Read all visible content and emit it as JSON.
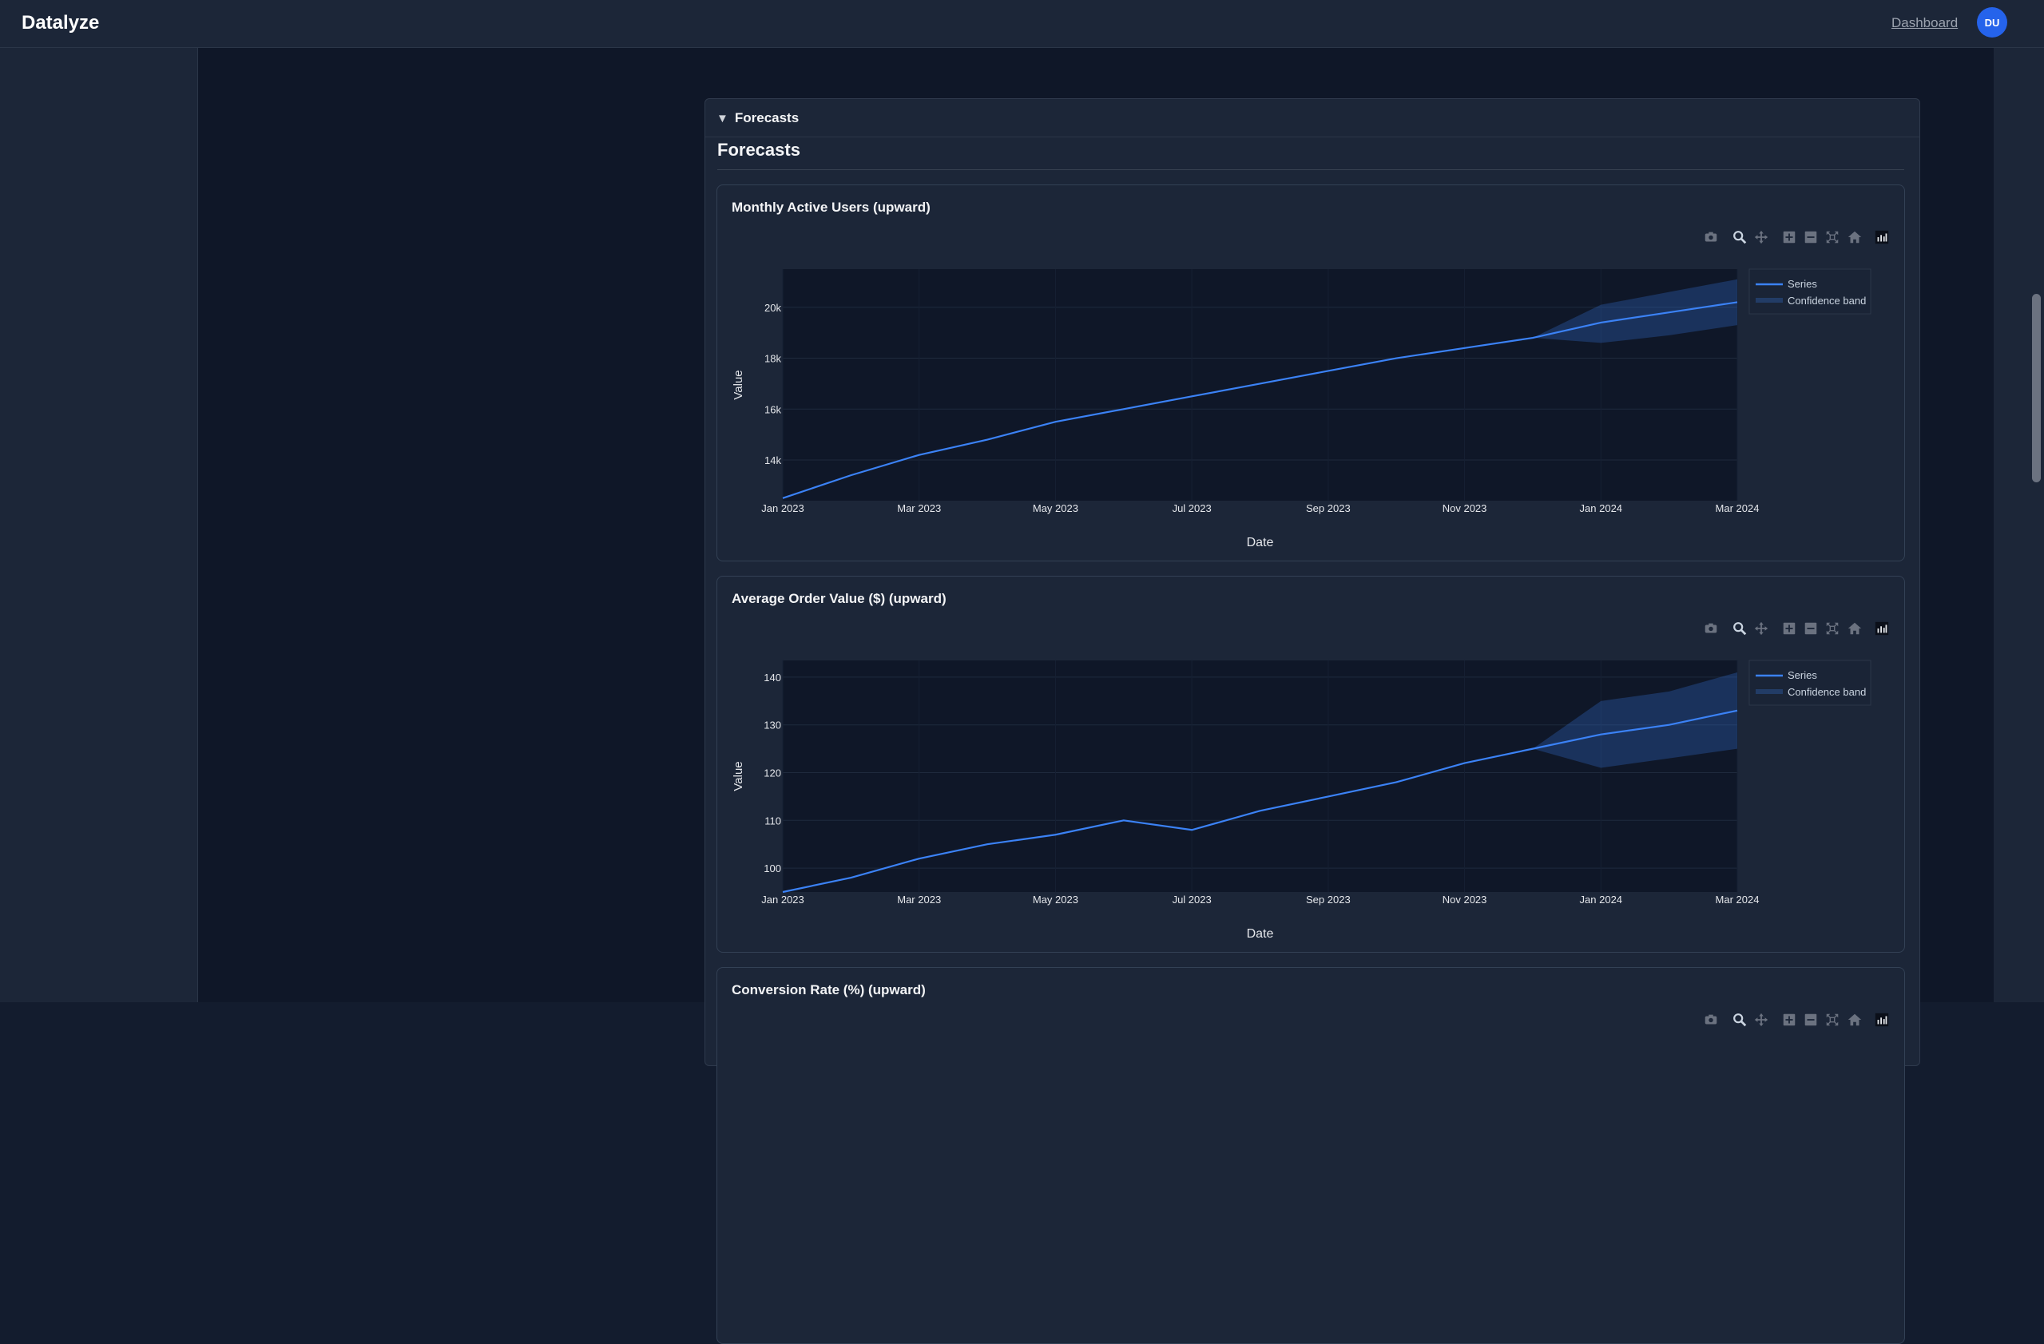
{
  "app": {
    "brand": "Datalyze",
    "nav_dashboard": "Dashboard",
    "user_initials": "DU"
  },
  "colors": {
    "accent": "#2563eb",
    "series": "#3b82f6",
    "band": "rgba(59,130,246,0.25)"
  },
  "section": {
    "toggle_label": "Forecasts",
    "title": "Forecasts"
  },
  "modebar": {
    "icons": [
      "camera-icon",
      "zoom-icon",
      "pan-icon",
      "zoom-in-icon",
      "zoom-out-icon",
      "autoscale-icon",
      "reset-axes-icon",
      "plotly-logo-icon"
    ]
  },
  "cards": [
    {
      "title": "Monthly Active Users (upward)",
      "chart_data": {
        "type": "line",
        "x": [
          "2023-01",
          "2023-02",
          "2023-03",
          "2023-04",
          "2023-05",
          "2023-06",
          "2023-07",
          "2023-08",
          "2023-09",
          "2023-10",
          "2023-11",
          "2023-12",
          "2024-01",
          "2024-02",
          "2024-03"
        ],
        "x_tick_labels": [
          "Jan 2023",
          "Mar 2023",
          "May 2023",
          "Jul 2023",
          "Sep 2023",
          "Nov 2023",
          "Jan 2024",
          "Mar 2024"
        ],
        "y_tick_labels": [
          "14k",
          "16k",
          "18k",
          "20k"
        ],
        "y_ticks": [
          14000,
          16000,
          18000,
          20000
        ],
        "ylim": [
          12400,
          21500
        ],
        "xlabel": "Date",
        "ylabel": "Value",
        "legend_position": "top-right",
        "series": [
          {
            "name": "Series",
            "values": [
              12500,
              13400,
              14200,
              14800,
              15500,
              16000,
              16500,
              17000,
              17500,
              18000,
              18400,
              18800,
              19400,
              19800,
              20200
            ]
          },
          {
            "name": "Confidence band",
            "forecast_from": "2023-12",
            "lower": [
              18800,
              18600,
              18900,
              19300
            ],
            "upper": [
              18800,
              20100,
              20600,
              21100
            ]
          }
        ]
      }
    },
    {
      "title": "Average Order Value ($) (upward)",
      "chart_data": {
        "type": "line",
        "x": [
          "2023-01",
          "2023-02",
          "2023-03",
          "2023-04",
          "2023-05",
          "2023-06",
          "2023-07",
          "2023-08",
          "2023-09",
          "2023-10",
          "2023-11",
          "2023-12",
          "2024-01",
          "2024-02",
          "2024-03"
        ],
        "x_tick_labels": [
          "Jan 2023",
          "Mar 2023",
          "May 2023",
          "Jul 2023",
          "Sep 2023",
          "Nov 2023",
          "Jan 2024",
          "Mar 2024"
        ],
        "y_tick_labels": [
          "100",
          "110",
          "120",
          "130",
          "140"
        ],
        "y_ticks": [
          100,
          110,
          120,
          130,
          140
        ],
        "ylim": [
          95,
          143.5
        ],
        "xlabel": "Date",
        "ylabel": "Value",
        "legend_position": "top-right",
        "series": [
          {
            "name": "Series",
            "values": [
              95,
              98,
              102,
              105,
              107,
              110,
              108,
              112,
              115,
              118,
              122,
              125,
              128,
              130,
              133
            ]
          },
          {
            "name": "Confidence band",
            "forecast_from": "2023-12",
            "lower": [
              125,
              121,
              123,
              125
            ],
            "upper": [
              125,
              135,
              137,
              141
            ]
          }
        ]
      }
    },
    {
      "title": "Conversion Rate (%) (upward)"
    }
  ]
}
